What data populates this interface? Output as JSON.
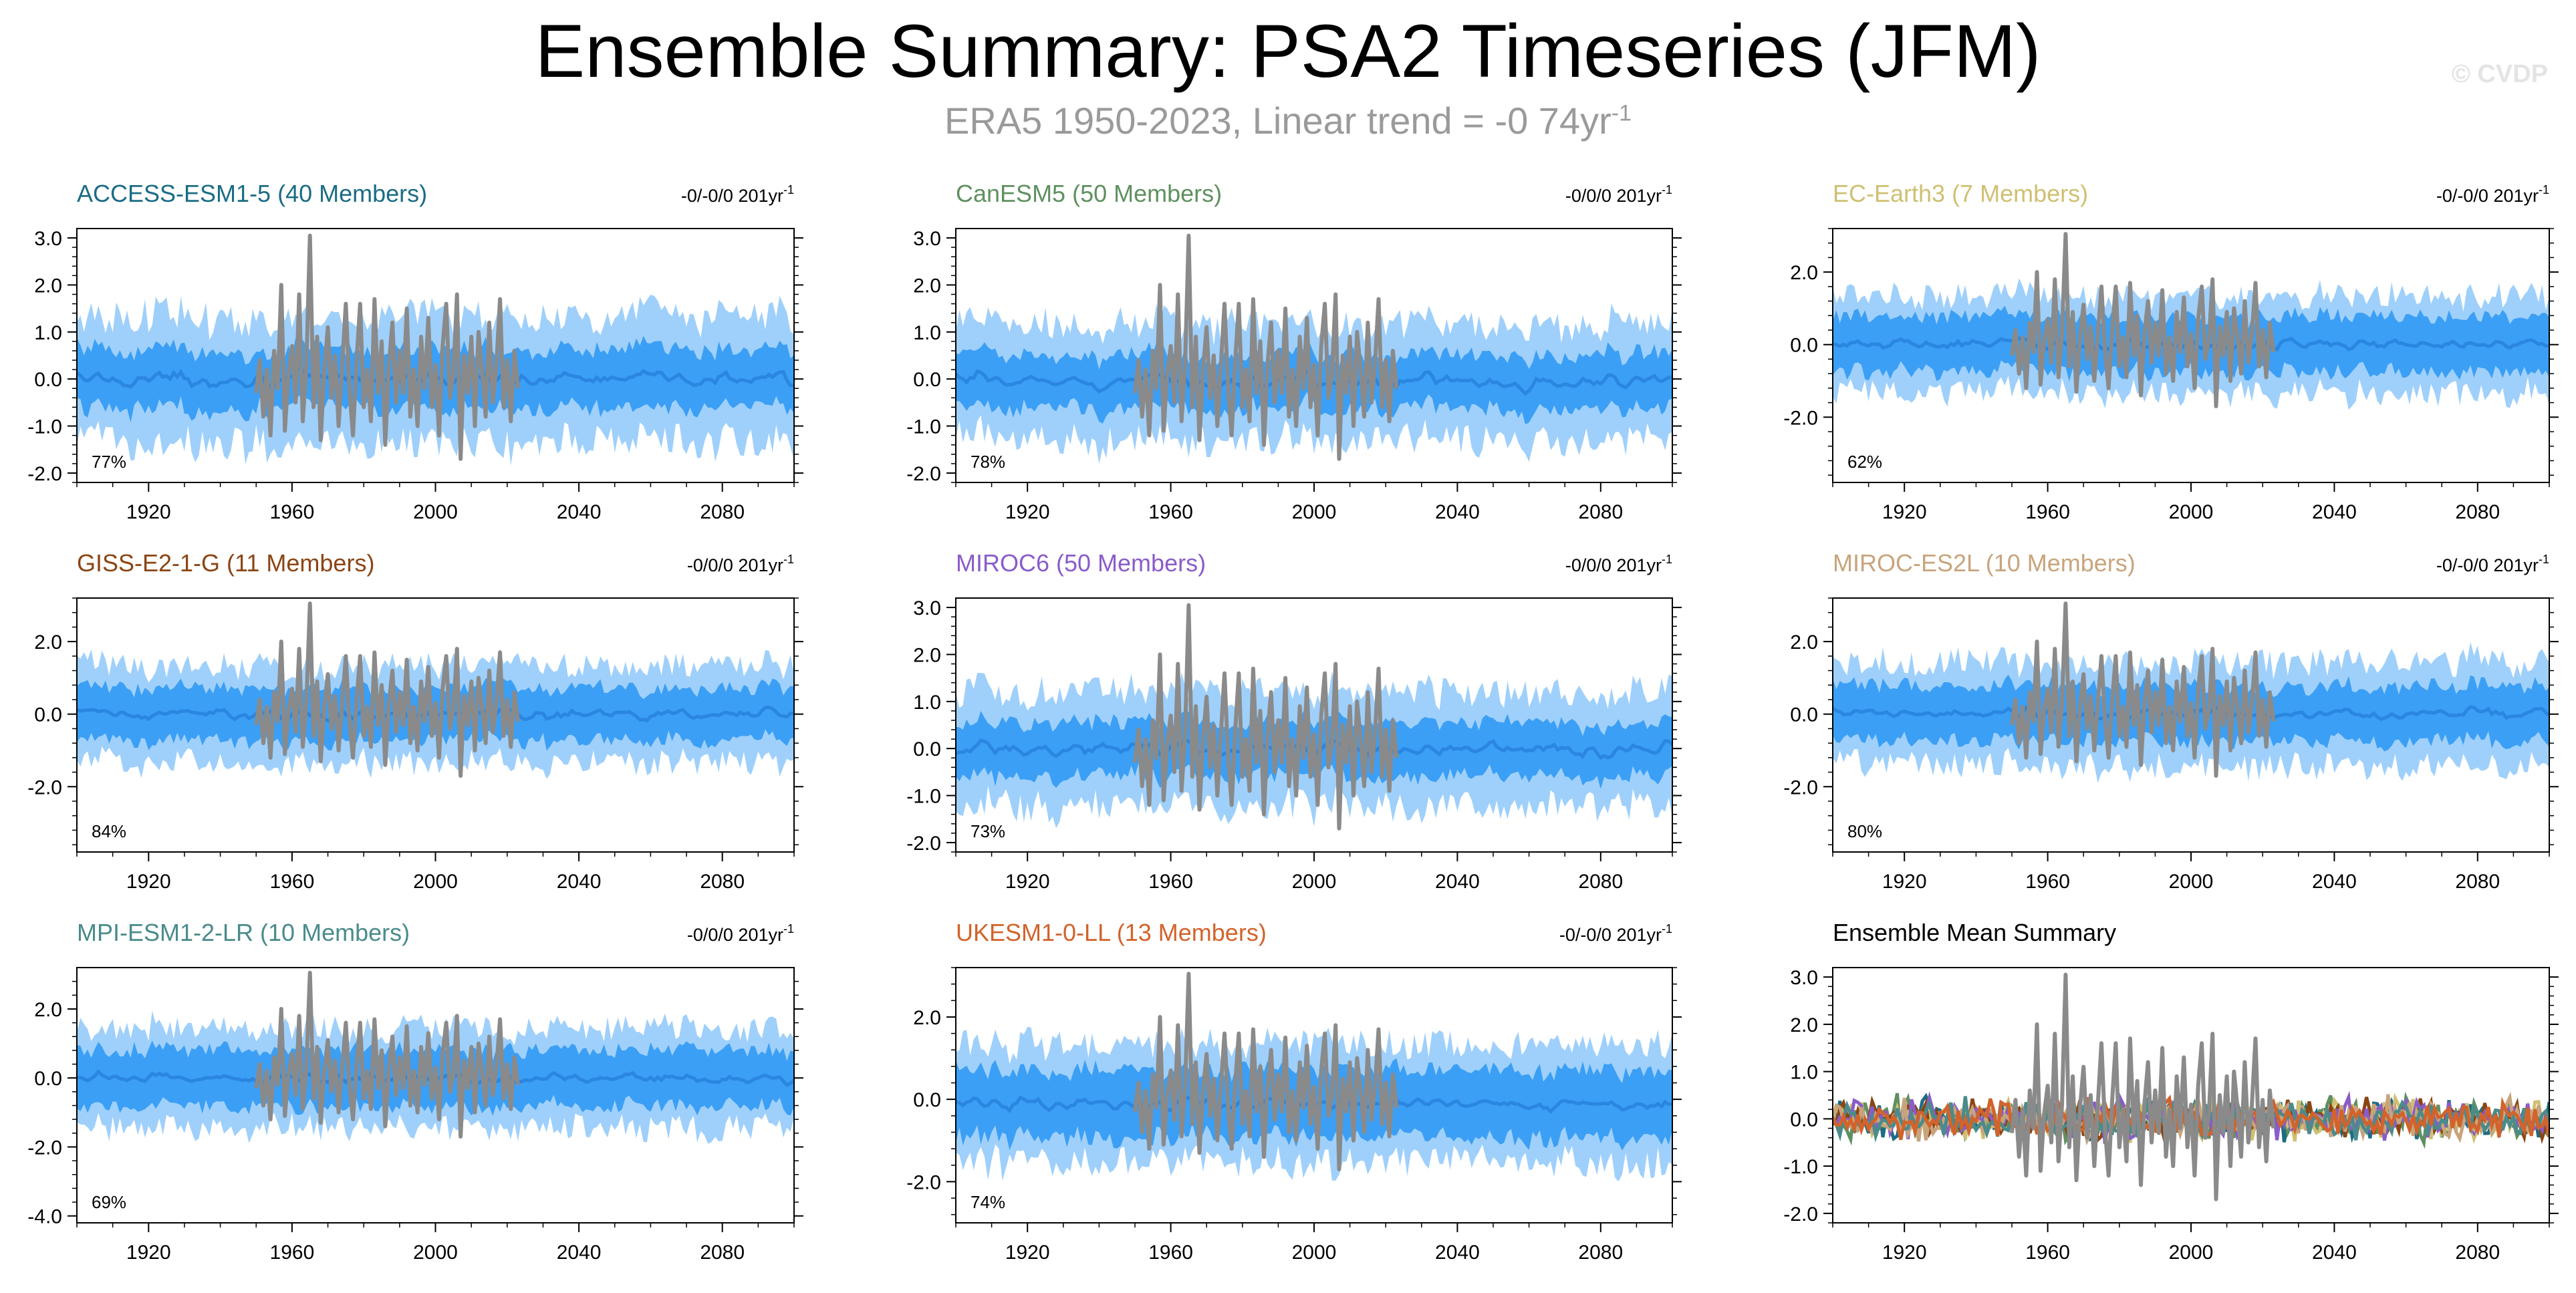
{
  "header": {
    "title": "Ensemble Summary: PSA2 Timeseries (JFM)",
    "subtitle_text": "ERA5 1950-2023, Linear trend = -0 74yr",
    "subtitle_unit": "-1",
    "watermark": "© CVDP"
  },
  "colors": {
    "outer_band": "#9fd0fb",
    "inner_band": "#3b9ff5",
    "ensemble_mean": "#2a86e0",
    "observations": "#8a8a8a"
  },
  "chart_data": [
    {
      "type": "area",
      "title": "ACCESS-ESM1-5 (40 Members)",
      "title_color": "#1b6c84",
      "trend": "-0/-0/0 201yr",
      "trend_unit": "-1",
      "percent": "77%",
      "ylim": [
        -2.2,
        3.2
      ],
      "yticks": [
        3.0,
        2.0,
        1.0,
        0.0,
        -1.0,
        -2.0
      ],
      "ytick_labels": [
        "3.0",
        "2.0",
        "1.0",
        "0.0",
        "-1.0",
        "-2.0"
      ],
      "xlim": [
        1900,
        2100
      ],
      "xticks": [
        1920,
        1960,
        2000,
        2040,
        2080
      ],
      "band_outer": 1.3,
      "band_inner": 0.65,
      "mean_offset": 0.0
    },
    {
      "type": "area",
      "title": "CanESM5 (50 Members)",
      "title_color": "#5f9060",
      "trend": "-0/0/0 201yr",
      "trend_unit": "-1",
      "percent": "78%",
      "ylim": [
        -2.2,
        3.2
      ],
      "yticks": [
        3.0,
        2.0,
        1.0,
        0.0,
        -1.0,
        -2.0
      ],
      "ytick_labels": [
        "3.0",
        "2.0",
        "1.0",
        "0.0",
        "-1.0",
        "-2.0"
      ],
      "xlim": [
        1900,
        2100
      ],
      "xticks": [
        1920,
        1960,
        2000,
        2040,
        2080
      ],
      "band_outer": 1.2,
      "band_inner": 0.6,
      "mean_offset": -0.05
    },
    {
      "type": "area",
      "title": "EC-Earth3 (7 Members)",
      "title_color": "#cfc072",
      "trend": "-0/-0/0 201yr",
      "trend_unit": "-1",
      "percent": "62%",
      "ylim": [
        -3.8,
        3.2
      ],
      "yticks": [
        2.0,
        0.0,
        -2.0
      ],
      "ytick_labels": [
        "2.0",
        "0.0",
        "-2.0"
      ],
      "xlim": [
        1900,
        2100
      ],
      "xticks": [
        1920,
        1960,
        2000,
        2040,
        2080
      ],
      "band_outer": 1.3,
      "band_inner": 0.8,
      "mean_offset": 0.0
    },
    {
      "type": "area",
      "title": "GISS-E2-1-G (11 Members)",
      "title_color": "#8b4513",
      "trend": "-0/0/0 201yr",
      "trend_unit": "-1",
      "percent": "84%",
      "ylim": [
        -3.8,
        3.2
      ],
      "yticks": [
        2.0,
        0.0,
        -2.0
      ],
      "ytick_labels": [
        "2.0",
        "0.0",
        "-2.0"
      ],
      "xlim": [
        1900,
        2100
      ],
      "xticks": [
        1920,
        1960,
        2000,
        2040,
        2080
      ],
      "band_outer": 1.3,
      "band_inner": 0.75,
      "mean_offset": 0.0
    },
    {
      "type": "area",
      "title": "MIROC6 (50 Members)",
      "title_color": "#8a5cc9",
      "trend": "-0/0/0 201yr",
      "trend_unit": "-1",
      "percent": "73%",
      "ylim": [
        -2.2,
        3.2
      ],
      "yticks": [
        3.0,
        2.0,
        1.0,
        0.0,
        -1.0,
        -2.0
      ],
      "ytick_labels": [
        "3.0",
        "2.0",
        "1.0",
        "0.0",
        "-1.0",
        "-2.0"
      ],
      "xlim": [
        1900,
        2100
      ],
      "xticks": [
        1920,
        1960,
        2000,
        2040,
        2080
      ],
      "band_outer": 1.2,
      "band_inner": 0.6,
      "mean_offset": 0.0
    },
    {
      "type": "area",
      "title": "MIROC-ES2L (10 Members)",
      "title_color": "#c8a47c",
      "trend": "-0/-0/0 201yr",
      "trend_unit": "-1",
      "percent": "80%",
      "ylim": [
        -3.8,
        3.2
      ],
      "yticks": [
        2.0,
        0.0,
        -2.0
      ],
      "ytick_labels": [
        "2.0",
        "0.0",
        "-2.0"
      ],
      "xlim": [
        1900,
        2100
      ],
      "xticks": [
        1920,
        1960,
        2000,
        2040,
        2080
      ],
      "band_outer": 1.4,
      "band_inner": 0.8,
      "mean_offset": 0.0
    },
    {
      "type": "area",
      "title": "MPI-ESM1-2-LR (10 Members)",
      "title_color": "#4a8b8b",
      "trend": "-0/0/0 201yr",
      "trend_unit": "-1",
      "percent": "69%",
      "ylim": [
        -4.2,
        3.2
      ],
      "yticks": [
        2.0,
        0.0,
        -2.0,
        -4.0
      ],
      "ytick_labels": [
        "2.0",
        "0.0",
        "-2.0",
        "-4.0"
      ],
      "xlim": [
        1900,
        2100
      ],
      "xticks": [
        1920,
        1960,
        2000,
        2040,
        2080
      ],
      "band_outer": 1.4,
      "band_inner": 0.85,
      "mean_offset": 0.0
    },
    {
      "type": "area",
      "title": "UKESM1-0-LL (13 Members)",
      "title_color": "#d2632b",
      "trend": "-0/-0/0 201yr",
      "trend_unit": "-1",
      "percent": "74%",
      "ylim": [
        -3.0,
        3.2
      ],
      "yticks": [
        2.0,
        0.0,
        -2.0
      ],
      "ytick_labels": [
        "2.0",
        "0.0",
        "-2.0"
      ],
      "xlim": [
        1900,
        2100
      ],
      "xticks": [
        1920,
        1960,
        2000,
        2040,
        2080
      ],
      "band_outer": 1.4,
      "band_inner": 0.85,
      "mean_offset": -0.1
    },
    {
      "type": "line",
      "title": "Ensemble Mean Summary",
      "title_color": "#000000",
      "ylim": [
        -2.2,
        3.2
      ],
      "yticks": [
        3.0,
        2.0,
        1.0,
        0.0,
        -1.0,
        -2.0
      ],
      "ytick_labels": [
        "3.0",
        "2.0",
        "1.0",
        "0.0",
        "-1.0",
        "-2.0"
      ],
      "xlim": [
        1900,
        2100
      ],
      "xticks": [
        1920,
        1960,
        2000,
        2040,
        2080
      ],
      "series": [
        {
          "name": "ACCESS-ESM1-5",
          "color": "#1b6c84"
        },
        {
          "name": "CanESM5",
          "color": "#5f9060"
        },
        {
          "name": "EC-Earth3",
          "color": "#cfc072"
        },
        {
          "name": "GISS-E2-1-G",
          "color": "#8b4513"
        },
        {
          "name": "MIROC6",
          "color": "#8a5cc9"
        },
        {
          "name": "MIROC-ES2L",
          "color": "#c8a47c"
        },
        {
          "name": "MPI-ESM1-2-LR",
          "color": "#4a8b8b"
        },
        {
          "name": "UKESM1-0-LL",
          "color": "#d2632b"
        }
      ]
    }
  ],
  "observations": {
    "name": "ERA5",
    "x": [
      1950,
      1951,
      1952,
      1953,
      1954,
      1955,
      1956,
      1957,
      1958,
      1959,
      1960,
      1961,
      1962,
      1963,
      1964,
      1965,
      1966,
      1967,
      1968,
      1969,
      1970,
      1971,
      1972,
      1973,
      1974,
      1975,
      1976,
      1977,
      1978,
      1979,
      1980,
      1981,
      1982,
      1983,
      1984,
      1985,
      1986,
      1987,
      1988,
      1989,
      1990,
      1991,
      1992,
      1993,
      1994,
      1995,
      1996,
      1997,
      1998,
      1999,
      2000,
      2001,
      2002,
      2003,
      2004,
      2005,
      2006,
      2007,
      2008,
      2009,
      2010,
      2011,
      2012,
      2013,
      2014,
      2015,
      2016,
      2017,
      2018,
      2019,
      2020,
      2021,
      2022,
      2023
    ],
    "y": [
      -0.3,
      0.4,
      -0.8,
      0.2,
      -1.2,
      0.6,
      -0.2,
      2.0,
      -1.1,
      0.1,
      0.7,
      -0.5,
      1.8,
      -0.9,
      0.3,
      3.05,
      -0.6,
      0.9,
      -1.3,
      0.2,
      1.1,
      -0.4,
      0.5,
      -1.0,
      0.3,
      1.6,
      -0.2,
      -1.2,
      0.4,
      1.6,
      -0.6,
      0.2,
      -0.9,
      1.7,
      -0.3,
      0.8,
      -1.4,
      0.3,
      1.2,
      -0.5,
      0.6,
      -0.3,
      1.5,
      -0.8,
      0.2,
      -1.0,
      0.9,
      -0.2,
      1.3,
      -0.6,
      0.3,
      -1.2,
      0.7,
      1.6,
      -0.4,
      0.1,
      1.8,
      -1.7,
      0.5,
      -0.3,
      0.9,
      -1.0,
      1.0,
      0.2,
      -0.8,
      1.2,
      -0.5,
      0.3,
      1.7,
      -0.6,
      0.4,
      -0.9,
      0.6,
      -0.2
    ]
  }
}
